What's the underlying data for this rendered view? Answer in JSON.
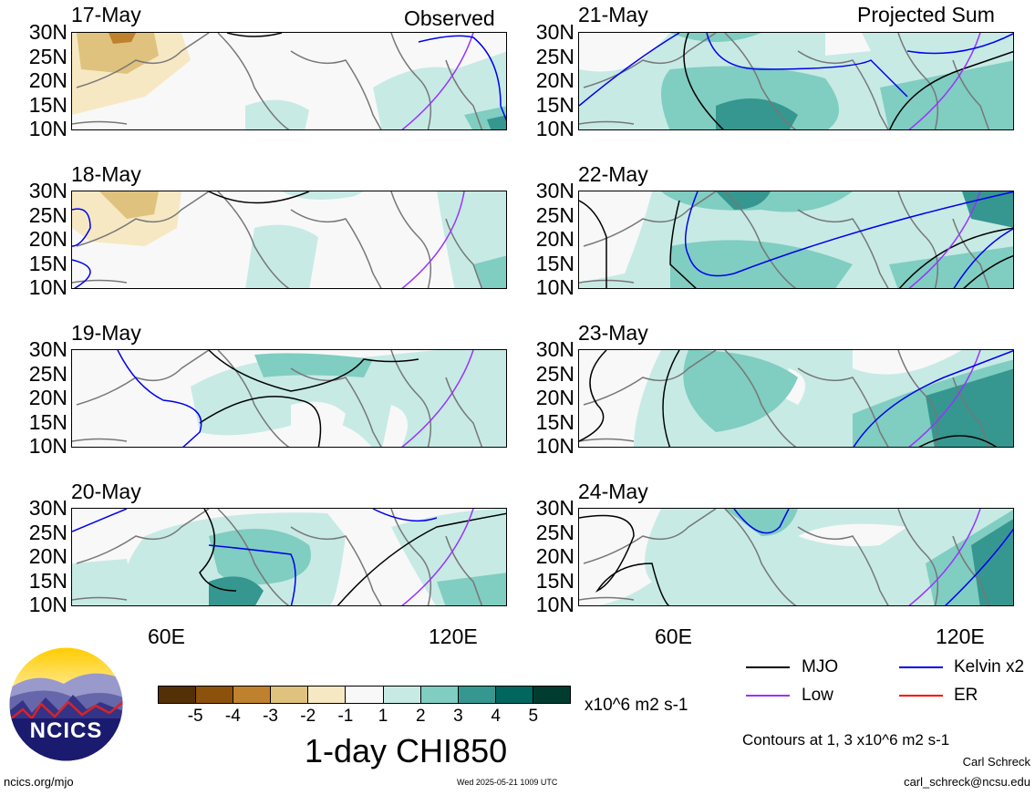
{
  "headers": {
    "left": "Observed",
    "right": "Projected Sum"
  },
  "panels_left": [
    {
      "date": "17-May"
    },
    {
      "date": "18-May"
    },
    {
      "date": "19-May"
    },
    {
      "date": "20-May"
    }
  ],
  "panels_right": [
    {
      "date": "21-May"
    },
    {
      "date": "22-May"
    },
    {
      "date": "23-May"
    },
    {
      "date": "24-May"
    }
  ],
  "lat_labels": [
    "30N",
    "25N",
    "20N",
    "15N",
    "10N"
  ],
  "lon_labels": [
    "60E",
    "120E"
  ],
  "colorbar": {
    "ticks": [
      "-5",
      "-4",
      "-3",
      "-2",
      "-1",
      "1",
      "2",
      "3",
      "4",
      "5"
    ],
    "colors": [
      "#543005",
      "#8c510a",
      "#bf812d",
      "#dfc27d",
      "#f6e8c3",
      "#f8f8f8",
      "#c7eae5",
      "#80cdc1",
      "#35978f",
      "#01665e",
      "#003c30"
    ],
    "units": "x10^6 m2 s-1",
    "title": "1-day CHI850"
  },
  "legend": [
    {
      "label": "MJO",
      "color": "#000000"
    },
    {
      "label": "Kelvin x2",
      "color": "#0000ee"
    },
    {
      "label": "Low",
      "color": "#9933ff"
    },
    {
      "label": "ER",
      "color": "#ff0000"
    }
  ],
  "contour_note": "Contours at 1, 3 x10^6 m2 s-1",
  "author": "Carl Schreck",
  "email": "carl_schreck@ncsu.edu",
  "website": "ncics.org/mjo",
  "timestamp": "Wed 2025-05-21 1009 UTC",
  "logo_text": "NCICS"
}
